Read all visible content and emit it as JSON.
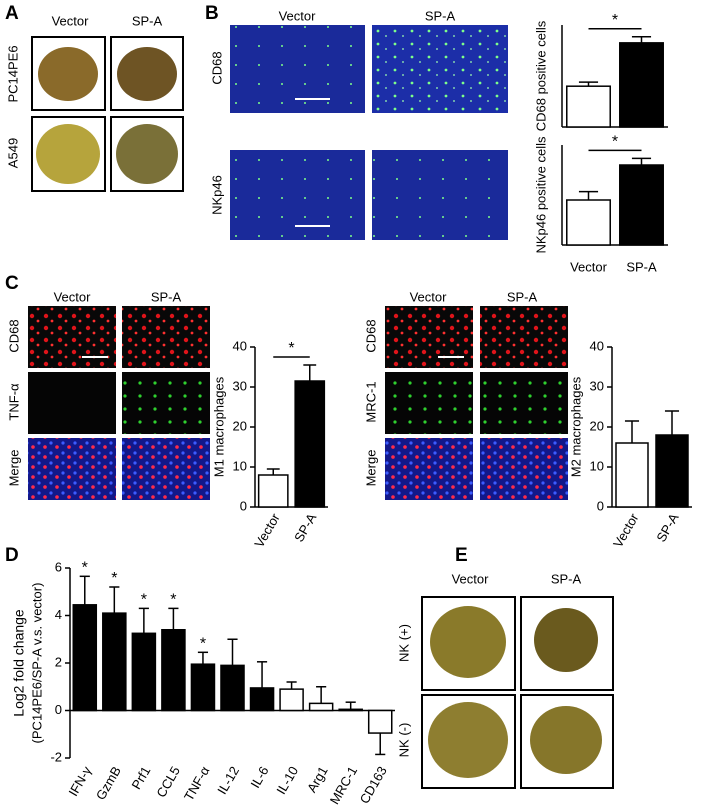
{
  "panels": {
    "A": {
      "label": "A",
      "columns": [
        "Vector",
        "SP-A"
      ],
      "rows": [
        "PC14PE6",
        "A549"
      ]
    },
    "B": {
      "label": "B",
      "columns": [
        "Vector",
        "SP-A"
      ],
      "rows": [
        "CD68",
        "NKp46"
      ]
    },
    "C": {
      "label": "C",
      "left": {
        "columns": [
          "Vector",
          "SP-A"
        ],
        "rows": [
          "CD68",
          "TNF-α",
          "Merge"
        ]
      },
      "right": {
        "columns": [
          "Vector",
          "SP-A"
        ],
        "rows": [
          "CD68",
          "MRC-1",
          "Merge"
        ]
      }
    },
    "D": {
      "label": "D"
    },
    "E": {
      "label": "E",
      "columns": [
        "Vector",
        "SP-A"
      ],
      "rows": [
        "NK (+)",
        "NK (-)"
      ]
    }
  },
  "chart_data": [
    {
      "type": "bar",
      "y_label": "CD68 positive cells",
      "values": [
        80,
        165
      ],
      "errors": [
        8,
        12
      ],
      "colors": [
        "#ffffff",
        "#000000"
      ],
      "ylim": [
        0,
        200
      ],
      "annotation": "*"
    },
    {
      "type": "bar",
      "y_label": "NKp46 positive cells",
      "categories": [
        "Vector",
        "SP-A"
      ],
      "values": [
        13.5,
        24
      ],
      "errors": [
        2.5,
        2
      ],
      "colors": [
        "#ffffff",
        "#000000"
      ],
      "ylim": [
        0,
        30
      ],
      "annotation": "*"
    },
    {
      "type": "bar",
      "y_label": "M1 macrophages",
      "categories": [
        "Vector",
        "SP-A"
      ],
      "values": [
        8,
        31.5
      ],
      "errors": [
        1.5,
        4
      ],
      "colors": [
        "#ffffff",
        "#000000"
      ],
      "ylim": [
        0,
        40
      ],
      "yticks": [
        0,
        10,
        20,
        30,
        40
      ],
      "annotation": "*"
    },
    {
      "type": "bar",
      "y_label": "M2 macrophages",
      "categories": [
        "Vector",
        "SP-A"
      ],
      "values": [
        16,
        18
      ],
      "errors": [
        5.5,
        6
      ],
      "colors": [
        "#ffffff",
        "#000000"
      ],
      "ylim": [
        0,
        40
      ],
      "yticks": [
        0,
        10,
        20,
        30,
        40
      ]
    },
    {
      "type": "bar",
      "y_label": "Log2 fold change",
      "y_sublabel": "(PC14PE6/SP-A v.s. vector)",
      "categories": [
        "IFN-γ",
        "GzmB",
        "Prf1",
        "CCL5",
        "TNF-α",
        "IL-12",
        "IL-6",
        "IL-10",
        "Arg1",
        "MRC-1",
        "CD163"
      ],
      "values": [
        4.45,
        4.1,
        3.25,
        3.4,
        1.95,
        1.9,
        0.95,
        0.9,
        0.3,
        0.05,
        -0.95
      ],
      "errors": [
        1.2,
        1.1,
        1.05,
        0.9,
        0.5,
        1.1,
        1.1,
        0.3,
        0.7,
        0.3,
        0.9
      ],
      "colors": [
        "#000000",
        "#000000",
        "#000000",
        "#000000",
        "#000000",
        "#000000",
        "#000000",
        "#ffffff",
        "#ffffff",
        "#ffffff",
        "#ffffff"
      ],
      "annotations": [
        "*",
        "*",
        "*",
        "*",
        "*",
        null,
        null,
        null,
        null,
        null,
        null
      ],
      "ylim": [
        -2,
        6
      ],
      "yticks": [
        -2,
        0,
        2,
        4,
        6
      ]
    }
  ]
}
